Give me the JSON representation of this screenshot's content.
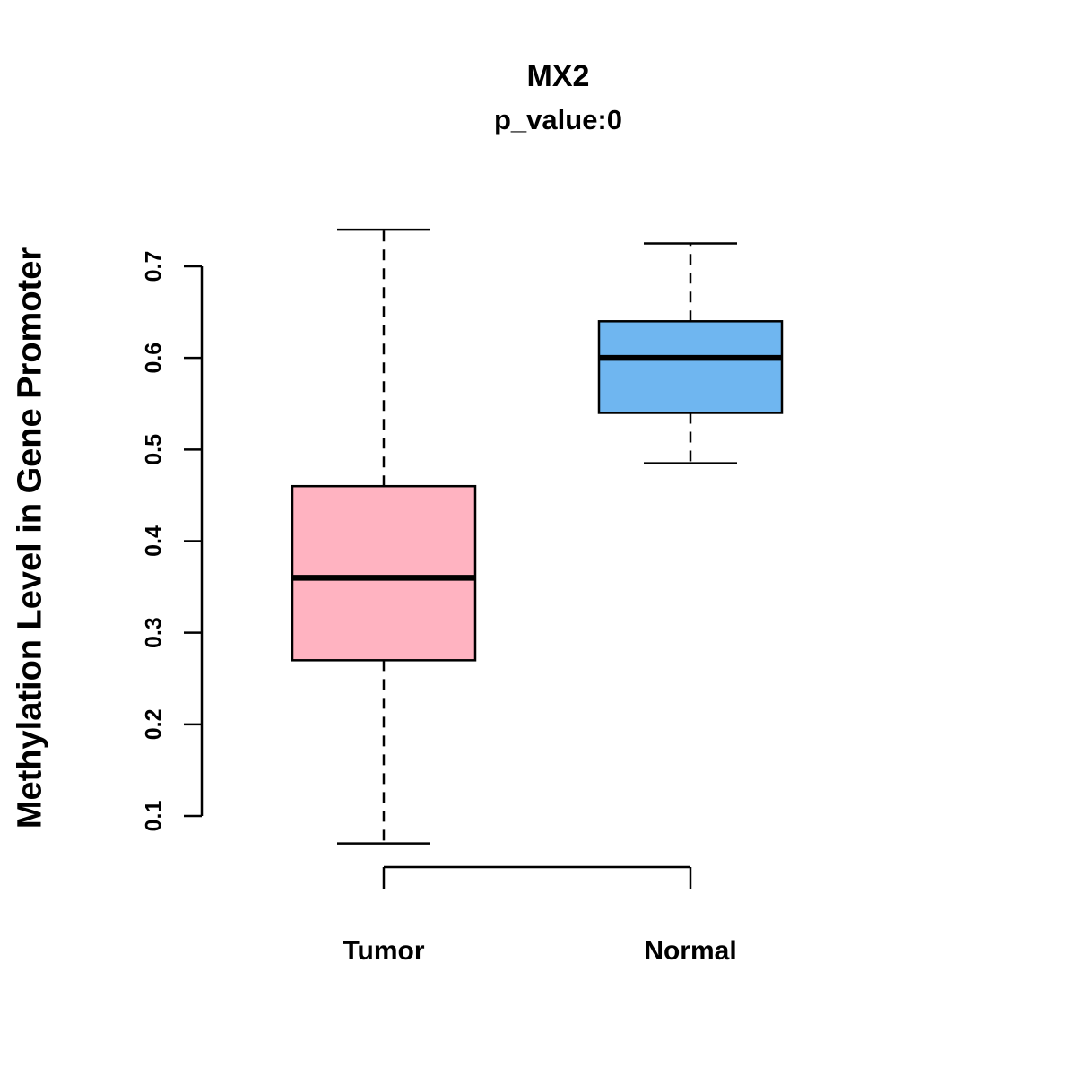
{
  "chart_data": {
    "type": "boxplot",
    "title": "MX2",
    "subtitle": "p_value:0",
    "ylabel": "Methylation Level in Gene Promoter",
    "categories": [
      "Tumor",
      "Normal"
    ],
    "series": [
      {
        "name": "Tumor",
        "whisker_low": 0.07,
        "q1": 0.27,
        "median": 0.36,
        "q3": 0.46,
        "whisker_high": 0.74,
        "color": "#FFB3C1"
      },
      {
        "name": "Normal",
        "whisker_low": 0.485,
        "q1": 0.54,
        "median": 0.6,
        "q3": 0.64,
        "whisker_high": 0.725,
        "color": "#6FB6F0"
      }
    ],
    "yticks": [
      0.1,
      0.2,
      0.3,
      0.4,
      0.5,
      0.6,
      0.7
    ],
    "ylim": [
      0.07,
      0.74
    ],
    "grid": false,
    "legend": null,
    "axis_color": "#000000",
    "background": "#ffffff"
  }
}
